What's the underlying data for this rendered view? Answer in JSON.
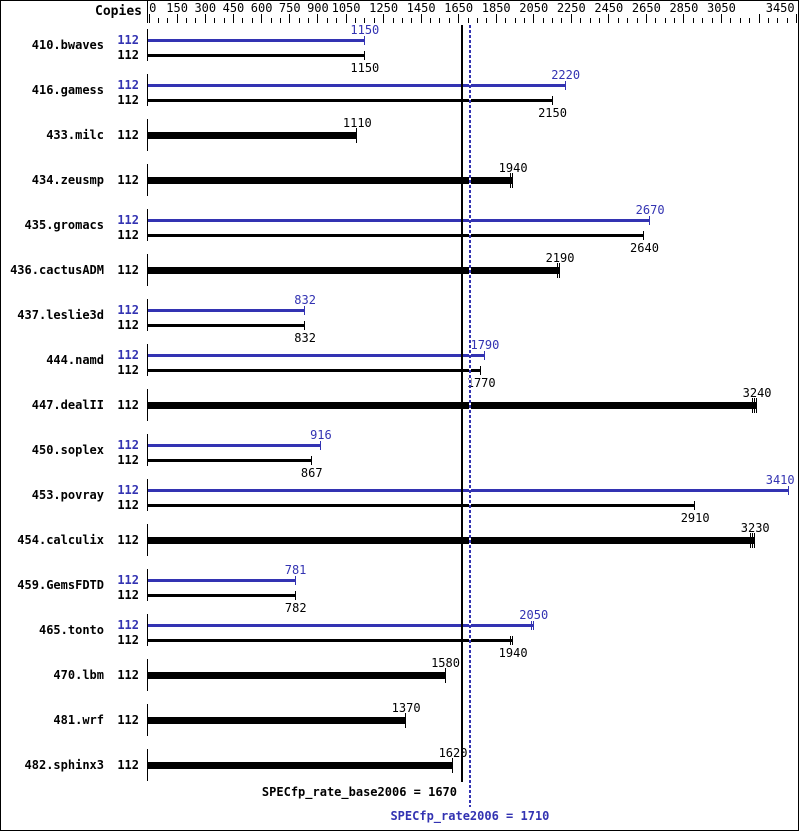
{
  "header": {
    "copies_label": "Copies"
  },
  "colors": {
    "peak_blue": "#3333b2",
    "base_black": "#000000"
  },
  "axis": {
    "min": 0,
    "max": 3450,
    "tick_step": 50,
    "labeled_ticks": [
      0,
      150,
      300,
      450,
      600,
      750,
      900,
      1050,
      1250,
      1450,
      1650,
      1850,
      2050,
      2250,
      2450,
      2650,
      2850,
      3050,
      3450
    ],
    "major_ticks": [
      0,
      150,
      300,
      450,
      600,
      750,
      900,
      1050,
      1250,
      1450,
      1650,
      1850,
      2050,
      2250,
      2450,
      2650,
      2850,
      3050,
      3250,
      3450
    ]
  },
  "summary": {
    "base_label": "SPECfp_rate_base2006 = 1670",
    "peak_label": "SPECfp_rate2006 = 1710",
    "base_value": 1670,
    "peak_value": 1710
  },
  "chart_data": {
    "type": "bar",
    "orientation": "horizontal",
    "title": "SPECfp_rate2006 result bar chart",
    "xlim": [
      0,
      3463
    ],
    "copies_column_header": "Copies",
    "benchmarks": [
      {
        "name": "410.bwaves",
        "copies": 112,
        "style": "pair",
        "peak": 1150,
        "base": 1150,
        "peak_end_ticks": 1,
        "base_end_ticks": 1
      },
      {
        "name": "416.gamess",
        "copies": 112,
        "style": "pair",
        "peak": 2220,
        "base": 2150,
        "peak_end_ticks": 1,
        "base_end_ticks": 1
      },
      {
        "name": "433.milc",
        "copies": 112,
        "style": "single",
        "base": 1110,
        "base_end_ticks": 1
      },
      {
        "name": "434.zeusmp",
        "copies": 112,
        "style": "single",
        "base": 1940,
        "base_end_ticks": 2
      },
      {
        "name": "435.gromacs",
        "copies": 112,
        "style": "pair",
        "peak": 2670,
        "base": 2640,
        "peak_end_ticks": 1,
        "base_end_ticks": 1
      },
      {
        "name": "436.cactusADM",
        "copies": 112,
        "style": "single",
        "base": 2190,
        "base_end_ticks": 2
      },
      {
        "name": "437.leslie3d",
        "copies": 112,
        "style": "pair",
        "peak": 832,
        "base": 832,
        "peak_end_ticks": 1,
        "base_end_ticks": 1
      },
      {
        "name": "444.namd",
        "copies": 112,
        "style": "pair",
        "peak": 1790,
        "base": 1770,
        "peak_end_ticks": 1,
        "base_end_ticks": 1
      },
      {
        "name": "447.dealII",
        "copies": 112,
        "style": "single",
        "base": 3240,
        "base_end_ticks": 3
      },
      {
        "name": "450.soplex",
        "copies": 112,
        "style": "pair",
        "peak": 916,
        "base": 867,
        "peak_end_ticks": 1,
        "base_end_ticks": 1
      },
      {
        "name": "453.povray",
        "copies": 112,
        "style": "pair",
        "peak": 3410,
        "base": 2910,
        "peak_end_ticks": 1,
        "base_end_ticks": 1
      },
      {
        "name": "454.calculix",
        "copies": 112,
        "style": "single",
        "base": 3230,
        "base_end_ticks": 3
      },
      {
        "name": "459.GemsFDTD",
        "copies": 112,
        "style": "pair",
        "peak": 781,
        "base": 782,
        "peak_end_ticks": 1,
        "base_end_ticks": 1
      },
      {
        "name": "465.tonto",
        "copies": 112,
        "style": "pair",
        "peak": 2050,
        "base": 1940,
        "peak_end_ticks": 2,
        "base_end_ticks": 2
      },
      {
        "name": "470.lbm",
        "copies": 112,
        "style": "single",
        "base": 1580,
        "base_end_ticks": 1
      },
      {
        "name": "481.wrf",
        "copies": 112,
        "style": "single",
        "base": 1370,
        "base_end_ticks": 1
      },
      {
        "name": "482.sphinx3",
        "copies": 112,
        "style": "single",
        "base": 1620,
        "base_end_ticks": 1
      }
    ]
  }
}
